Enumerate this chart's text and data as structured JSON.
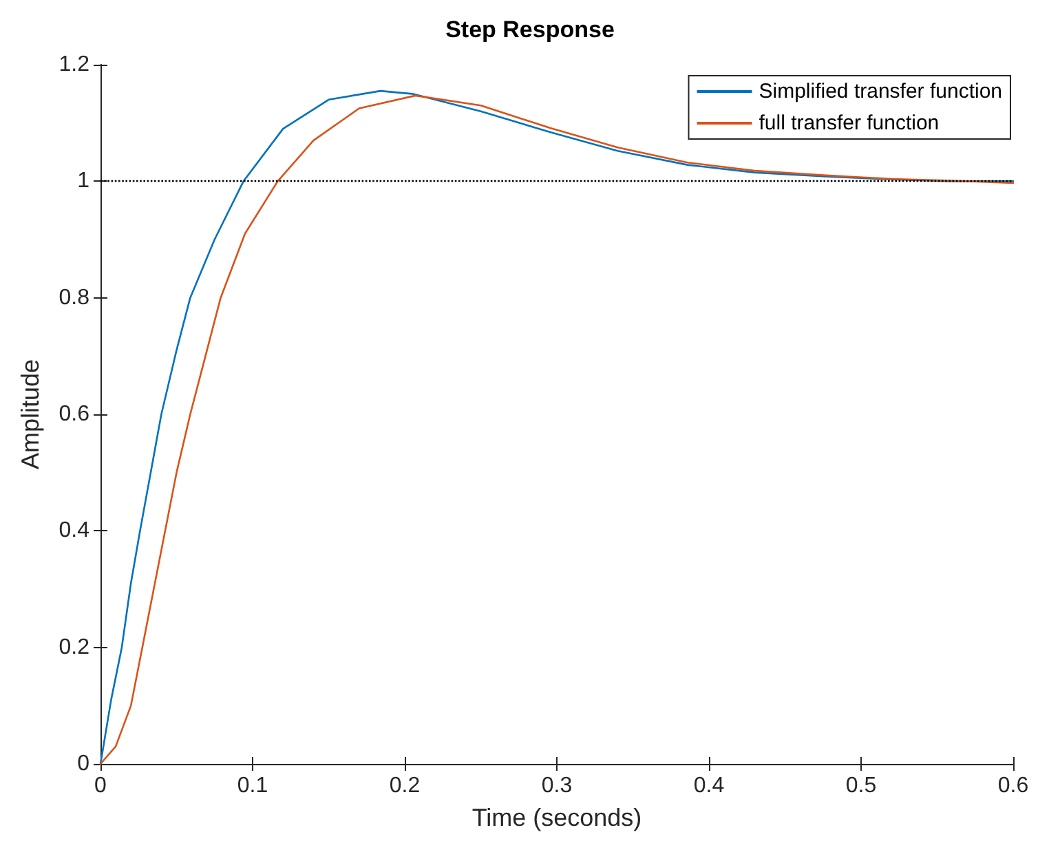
{
  "chart_data": {
    "type": "line",
    "title": "Step Response",
    "xlabel": "Time (seconds)",
    "ylabel": "Amplitude",
    "xlim": [
      0,
      0.6
    ],
    "xticks": [
      0,
      0.1,
      0.2,
      0.3,
      0.4,
      0.5,
      0.6
    ],
    "ylim": [
      0,
      1.2
    ],
    "yticks": [
      0,
      0.2,
      0.4,
      0.6,
      0.8,
      1,
      1.2
    ],
    "grid": false,
    "legend": "top right",
    "marker": "none",
    "line_style": "solid",
    "ref_lines": [
      {
        "axis": "y",
        "value": 1,
        "color": "#000000",
        "line_style": "dotted"
      }
    ],
    "series": [
      {
        "name": "Simplified transfer function",
        "color": "#0072bd",
        "x": [
          0,
          0.007,
          0.014,
          0.02,
          0.026,
          0.033,
          0.04,
          0.05,
          0.059,
          0.075,
          0.094,
          0.12,
          0.15,
          0.184,
          0.205,
          0.25,
          0.296,
          0.34,
          0.386,
          0.43,
          0.477,
          0.52,
          0.56,
          0.6
        ],
        "values": [
          0,
          0.11,
          0.2,
          0.31,
          0.4,
          0.5,
          0.6,
          0.71,
          0.8,
          0.9,
          1.0,
          1.09,
          1.14,
          1.155,
          1.15,
          1.12,
          1.084,
          1.052,
          1.028,
          1.015,
          1.008,
          1.003,
          1.0,
          1.0
        ]
      },
      {
        "name": "full transfer function",
        "color": "#d95319",
        "x": [
          0,
          0.01,
          0.02,
          0.0275,
          0.035,
          0.0425,
          0.05,
          0.059,
          0.069,
          0.079,
          0.095,
          0.1165,
          0.14,
          0.17,
          0.207,
          0.25,
          0.296,
          0.34,
          0.386,
          0.43,
          0.477,
          0.52,
          0.56,
          0.6
        ],
        "values": [
          0,
          0.03,
          0.1,
          0.2,
          0.3,
          0.4,
          0.5,
          0.6,
          0.7,
          0.8,
          0.91,
          1.0,
          1.07,
          1.125,
          1.147,
          1.13,
          1.091,
          1.058,
          1.032,
          1.018,
          1.01,
          1.004,
          1.001,
          0.997
        ]
      }
    ]
  }
}
